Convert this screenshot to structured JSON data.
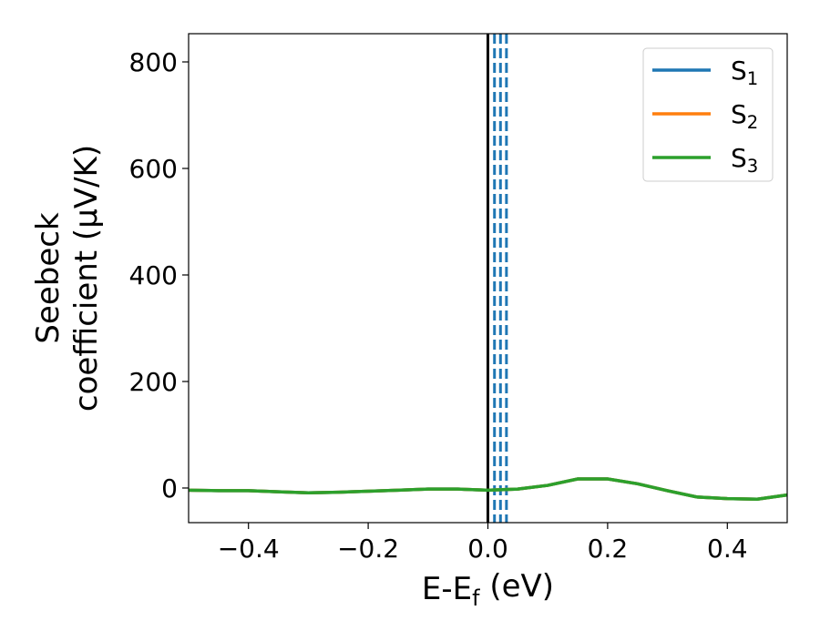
{
  "chart_data": {
    "type": "line",
    "ylabel": [
      "Seebeck",
      "coefficient  (μV/K)"
    ],
    "xlabel": "E-E_f (eV)",
    "x": [
      -0.5,
      -0.45,
      -0.4,
      -0.35,
      -0.3,
      -0.25,
      -0.2,
      -0.15,
      -0.1,
      -0.05,
      0,
      0.05,
      0.1,
      0.15,
      0.2,
      0.25,
      0.3,
      0.35,
      0.4,
      0.45,
      0.5
    ],
    "series": [
      {
        "name": "S_1",
        "color": "#1f77b4",
        "values": [
          -4,
          -5,
          -5,
          -7,
          -9,
          -8,
          -6,
          -4,
          -2,
          -2,
          -4,
          -2,
          5,
          17,
          17,
          8,
          -5,
          -17,
          -20,
          -21,
          -13
        ]
      },
      {
        "name": "S_2",
        "color": "#ff7f0e",
        "values": [
          -4,
          -5,
          -5,
          -7,
          -9,
          -8,
          -6,
          -4,
          -2,
          -2,
          -4,
          -2,
          5,
          17,
          17,
          8,
          -5,
          -17,
          -20,
          -21,
          -13
        ]
      },
      {
        "name": "S_3",
        "color": "#2ca02c",
        "values": [
          -4,
          -5,
          -5,
          -7,
          -9,
          -8,
          -6,
          -4,
          -2,
          -2,
          -4,
          -2,
          5,
          17,
          17,
          8,
          -5,
          -17,
          -20,
          -21,
          -13
        ]
      }
    ],
    "vlines": [
      {
        "x": 0,
        "color": "#000000",
        "style": "solid"
      },
      {
        "x": 0.011,
        "color": "#1f77b4",
        "style": "dashed"
      },
      {
        "x": 0.021,
        "color": "#1f77b4",
        "style": "dashed"
      },
      {
        "x": 0.031,
        "color": "#1f77b4",
        "style": "dashed"
      }
    ],
    "xlim": [
      -0.5,
      0.5
    ],
    "ylim": [
      -65,
      853
    ],
    "xticks": [
      {
        "value": -0.4,
        "label": "−0.4"
      },
      {
        "value": -0.2,
        "label": "−0.2"
      },
      {
        "value": 0,
        "label": "0.0"
      },
      0.2,
      0.4
    ],
    "yticks": [
      0,
      200,
      400,
      600,
      800
    ],
    "legend": "upper right"
  }
}
